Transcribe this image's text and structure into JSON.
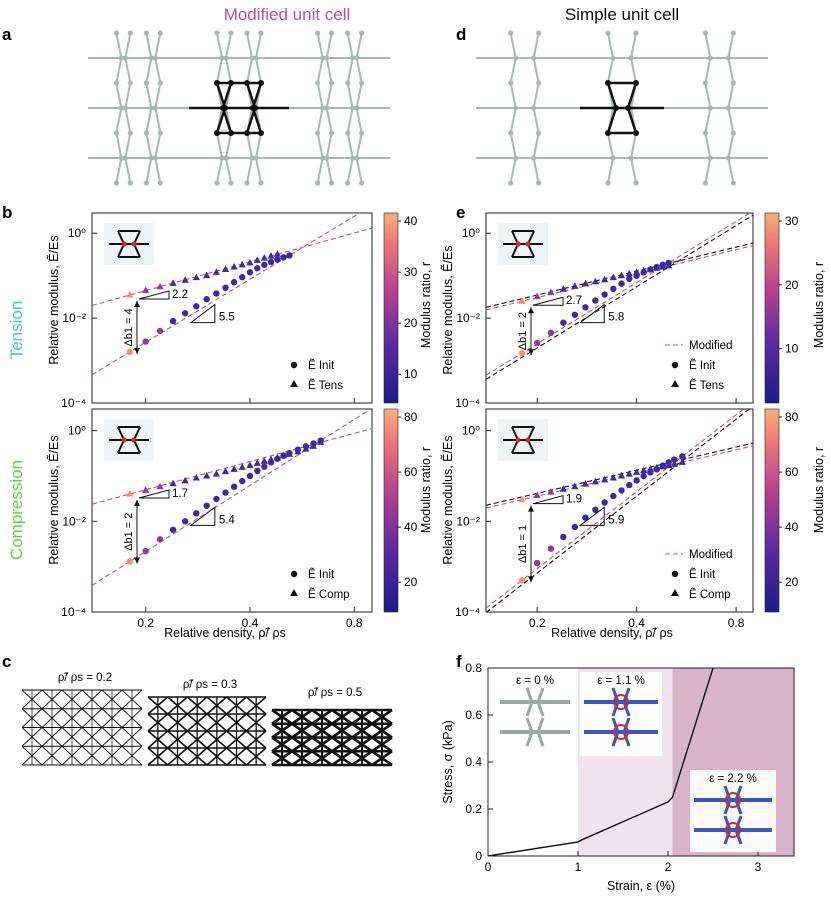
{
  "panels": {
    "a": {
      "letter": "a",
      "title": "Modified unit cell",
      "title_color": "#b1568f"
    },
    "d": {
      "letter": "d",
      "title": "Simple unit cell",
      "title_color": "#111111"
    },
    "b": {
      "letter": "b"
    },
    "e": {
      "letter": "e"
    },
    "c": {
      "letter": "c",
      "labels": [
        "ρ̃/ ρs = 0.2",
        "ρ̃/ ρs = 0.3",
        "ρ̃/ ρs = 0.5"
      ]
    },
    "f": {
      "letter": "f"
    }
  },
  "row_labels": {
    "tension": {
      "text": "Tension",
      "color": "#48c6c9"
    },
    "compression": {
      "text": "Compression",
      "color": "#5fd63c"
    }
  },
  "colors": {
    "lattice_gray": "#a9b8b6",
    "highlight": "#111111",
    "fit_line": "#c2508a",
    "fit_line_simple": "#111111",
    "marker_dark": "#3a2aa6",
    "marker_mid": "#8a3aa0",
    "marker_light": "#f4916b",
    "node_red": "#d62a1f"
  },
  "axes_text": {
    "ylabel": "Relative modulus, Ẽ/Es",
    "xlabel": "Relative density, ρ̃/ ρs",
    "colorbar_label": "Modulus ratio, r",
    "yticks": [
      "10⁰",
      "10⁻²",
      "10⁻⁴"
    ],
    "xticks": [
      "0.2",
      "0.4",
      "0.8"
    ]
  },
  "colorbars": {
    "b_top": {
      "ticks": [
        "40",
        "30",
        "20",
        "10"
      ]
    },
    "b_bottom": {
      "ticks": [
        "80",
        "60",
        "40",
        "20"
      ]
    },
    "e_top": {
      "ticks": [
        "30",
        "20",
        "10"
      ]
    },
    "e_bottom": {
      "ticks": [
        "80",
        "60",
        "40",
        "20"
      ]
    }
  },
  "annotations": {
    "b_top": {
      "slope_tens": "2.2",
      "slope_init": "5.5",
      "delta": "Δb1 = 4"
    },
    "b_bottom": {
      "slope_tens": "1.7",
      "slope_init": "5.4",
      "delta": "Δb1 = 2"
    },
    "e_top": {
      "slope_tens": "2.7",
      "slope_init": "5.8",
      "delta": "Δb1 = 2"
    },
    "e_bottom": {
      "slope_tens": "1.9",
      "slope_init": "5.9",
      "delta": "Δb1 = 1"
    }
  },
  "legends": {
    "init": "Ẽ Init",
    "tens": "Ẽ Tens",
    "comp": "Ẽ Comp",
    "modified": "Modified"
  },
  "chart_data": [
    {
      "type": "scatter",
      "title": "b tension",
      "xlabel": "Relative density, ρ̃/ ρs",
      "ylabel": "Relative modulus, Ẽ/Es",
      "xscale": "log",
      "yscale": "log",
      "xlim": [
        0.14,
        0.9
      ],
      "ylim": [
        0.0001,
        3
      ],
      "series": [
        {
          "name": "Ẽ Init",
          "marker": "circle",
          "x": [
            0.18,
            0.2,
            0.22,
            0.24,
            0.26,
            0.28,
            0.3,
            0.32,
            0.34,
            0.36,
            0.38,
            0.4,
            0.42,
            0.44,
            0.46,
            0.48,
            0.5,
            0.52
          ],
          "y": [
            0.0016,
            0.0028,
            0.005,
            0.0085,
            0.013,
            0.019,
            0.028,
            0.038,
            0.052,
            0.07,
            0.092,
            0.12,
            0.15,
            0.18,
            0.21,
            0.24,
            0.27,
            0.3
          ]
        },
        {
          "name": "Ẽ Tens",
          "marker": "triangle",
          "x": [
            0.18,
            0.2,
            0.22,
            0.24,
            0.26,
            0.28,
            0.3,
            0.32,
            0.34,
            0.36,
            0.38,
            0.4,
            0.42,
            0.44,
            0.46,
            0.48
          ],
          "y": [
            0.035,
            0.045,
            0.055,
            0.066,
            0.078,
            0.09,
            0.1,
            0.12,
            0.14,
            0.16,
            0.18,
            0.2,
            0.23,
            0.26,
            0.29,
            0.32
          ]
        }
      ]
    },
    {
      "type": "scatter",
      "title": "b compression",
      "xlabel": "Relative density, ρ̃/ ρs",
      "ylabel": "Relative modulus, Ẽ/Es",
      "xscale": "log",
      "yscale": "log",
      "xlim": [
        0.14,
        0.9
      ],
      "ylim": [
        0.0001,
        3
      ],
      "series": [
        {
          "name": "Ẽ Init",
          "marker": "circle",
          "x": [
            0.18,
            0.2,
            0.22,
            0.24,
            0.26,
            0.28,
            0.3,
            0.32,
            0.34,
            0.36,
            0.38,
            0.4,
            0.42,
            0.44,
            0.46,
            0.48,
            0.5,
            0.52,
            0.55,
            0.58,
            0.61,
            0.64
          ],
          "y": [
            0.0013,
            0.0022,
            0.004,
            0.0065,
            0.01,
            0.015,
            0.022,
            0.031,
            0.043,
            0.058,
            0.077,
            0.1,
            0.13,
            0.16,
            0.2,
            0.24,
            0.28,
            0.32,
            0.38,
            0.45,
            0.52,
            0.6
          ]
        },
        {
          "name": "Ẽ Comp",
          "marker": "triangle",
          "x": [
            0.18,
            0.2,
            0.22,
            0.24,
            0.26,
            0.28,
            0.3,
            0.32,
            0.34,
            0.36,
            0.38,
            0.4,
            0.42,
            0.44,
            0.46,
            0.48,
            0.5,
            0.52,
            0.55,
            0.58,
            0.61,
            0.64
          ],
          "y": [
            0.04,
            0.048,
            0.058,
            0.068,
            0.078,
            0.09,
            0.1,
            0.11,
            0.125,
            0.14,
            0.155,
            0.17,
            0.19,
            0.21,
            0.23,
            0.25,
            0.28,
            0.3,
            0.34,
            0.39,
            0.45,
            0.55
          ]
        }
      ]
    },
    {
      "type": "scatter",
      "title": "e tension",
      "xlabel": "Relative density, ρ̃/ ρs",
      "ylabel": "Relative modulus, Ẽ/Es",
      "xscale": "log",
      "yscale": "log",
      "xlim": [
        0.14,
        0.9
      ],
      "ylim": [
        0.0001,
        3
      ],
      "series": [
        {
          "name": "Ẽ Init",
          "marker": "circle",
          "x": [
            0.18,
            0.2,
            0.22,
            0.24,
            0.26,
            0.28,
            0.3,
            0.32,
            0.34,
            0.36,
            0.38,
            0.4,
            0.42,
            0.44,
            0.46,
            0.48,
            0.5
          ],
          "y": [
            0.0015,
            0.0026,
            0.0045,
            0.0078,
            0.012,
            0.018,
            0.026,
            0.036,
            0.049,
            0.065,
            0.084,
            0.1,
            0.12,
            0.14,
            0.16,
            0.18,
            0.2
          ]
        },
        {
          "name": "Ẽ Tens",
          "marker": "triangle",
          "x": [
            0.18,
            0.2,
            0.22,
            0.24,
            0.26,
            0.28,
            0.3,
            0.32,
            0.34,
            0.36,
            0.38,
            0.4,
            0.42,
            0.44,
            0.46,
            0.48,
            0.5
          ],
          "y": [
            0.025,
            0.032,
            0.04,
            0.048,
            0.056,
            0.064,
            0.072,
            0.08,
            0.09,
            0.1,
            0.11,
            0.12,
            0.13,
            0.14,
            0.15,
            0.16,
            0.17
          ]
        }
      ]
    },
    {
      "type": "scatter",
      "title": "e compression",
      "xlabel": "Relative density, ρ̃/ ρs",
      "ylabel": "Relative modulus, Ẽ/Es",
      "xscale": "log",
      "yscale": "log",
      "xlim": [
        0.14,
        0.9
      ],
      "ylim": [
        0.0001,
        3
      ],
      "series": [
        {
          "name": "Ẽ Init",
          "marker": "circle",
          "x": [
            0.18,
            0.2,
            0.22,
            0.24,
            0.26,
            0.28,
            0.3,
            0.32,
            0.34,
            0.36,
            0.38,
            0.4,
            0.42,
            0.44,
            0.46,
            0.48,
            0.5,
            0.52,
            0.55
          ],
          "y": [
            0.0005,
            0.0012,
            0.0025,
            0.0045,
            0.0075,
            0.012,
            0.018,
            0.026,
            0.036,
            0.048,
            0.063,
            0.08,
            0.1,
            0.12,
            0.14,
            0.17,
            0.2,
            0.23,
            0.27
          ]
        },
        {
          "name": "Ẽ Comp",
          "marker": "triangle",
          "x": [
            0.18,
            0.2,
            0.22,
            0.24,
            0.26,
            0.28,
            0.3,
            0.32,
            0.34,
            0.36,
            0.38,
            0.4,
            0.42,
            0.44,
            0.46,
            0.48,
            0.5,
            0.52,
            0.55
          ],
          "y": [
            0.03,
            0.037,
            0.044,
            0.051,
            0.058,
            0.066,
            0.074,
            0.082,
            0.09,
            0.1,
            0.11,
            0.12,
            0.13,
            0.14,
            0.15,
            0.16,
            0.17,
            0.18,
            0.2
          ]
        }
      ]
    },
    {
      "type": "line",
      "title": "f",
      "xlabel": "Strain, ε (%)",
      "ylabel": "Stress, σ (kPa)",
      "xlim": [
        0,
        3.4
      ],
      "ylim": [
        0,
        0.8
      ],
      "xticks": [
        "0",
        "1",
        "2",
        "3"
      ],
      "yticks": [
        "0",
        "0.2",
        "0.4",
        "0.6",
        "0.8"
      ],
      "x": [
        0,
        1.0,
        1.05,
        2.0,
        2.05,
        2.5
      ],
      "y": [
        0,
        0.06,
        0.07,
        0.23,
        0.25,
        0.8
      ],
      "regions": [
        {
          "from": 1.0,
          "to": 2.05,
          "shade": "light"
        },
        {
          "from": 2.05,
          "to": 3.4,
          "shade": "dark"
        }
      ],
      "inset_labels": [
        "ε = 0 %",
        "ε = 1.1 %",
        "ε = 2.2 %"
      ]
    }
  ]
}
